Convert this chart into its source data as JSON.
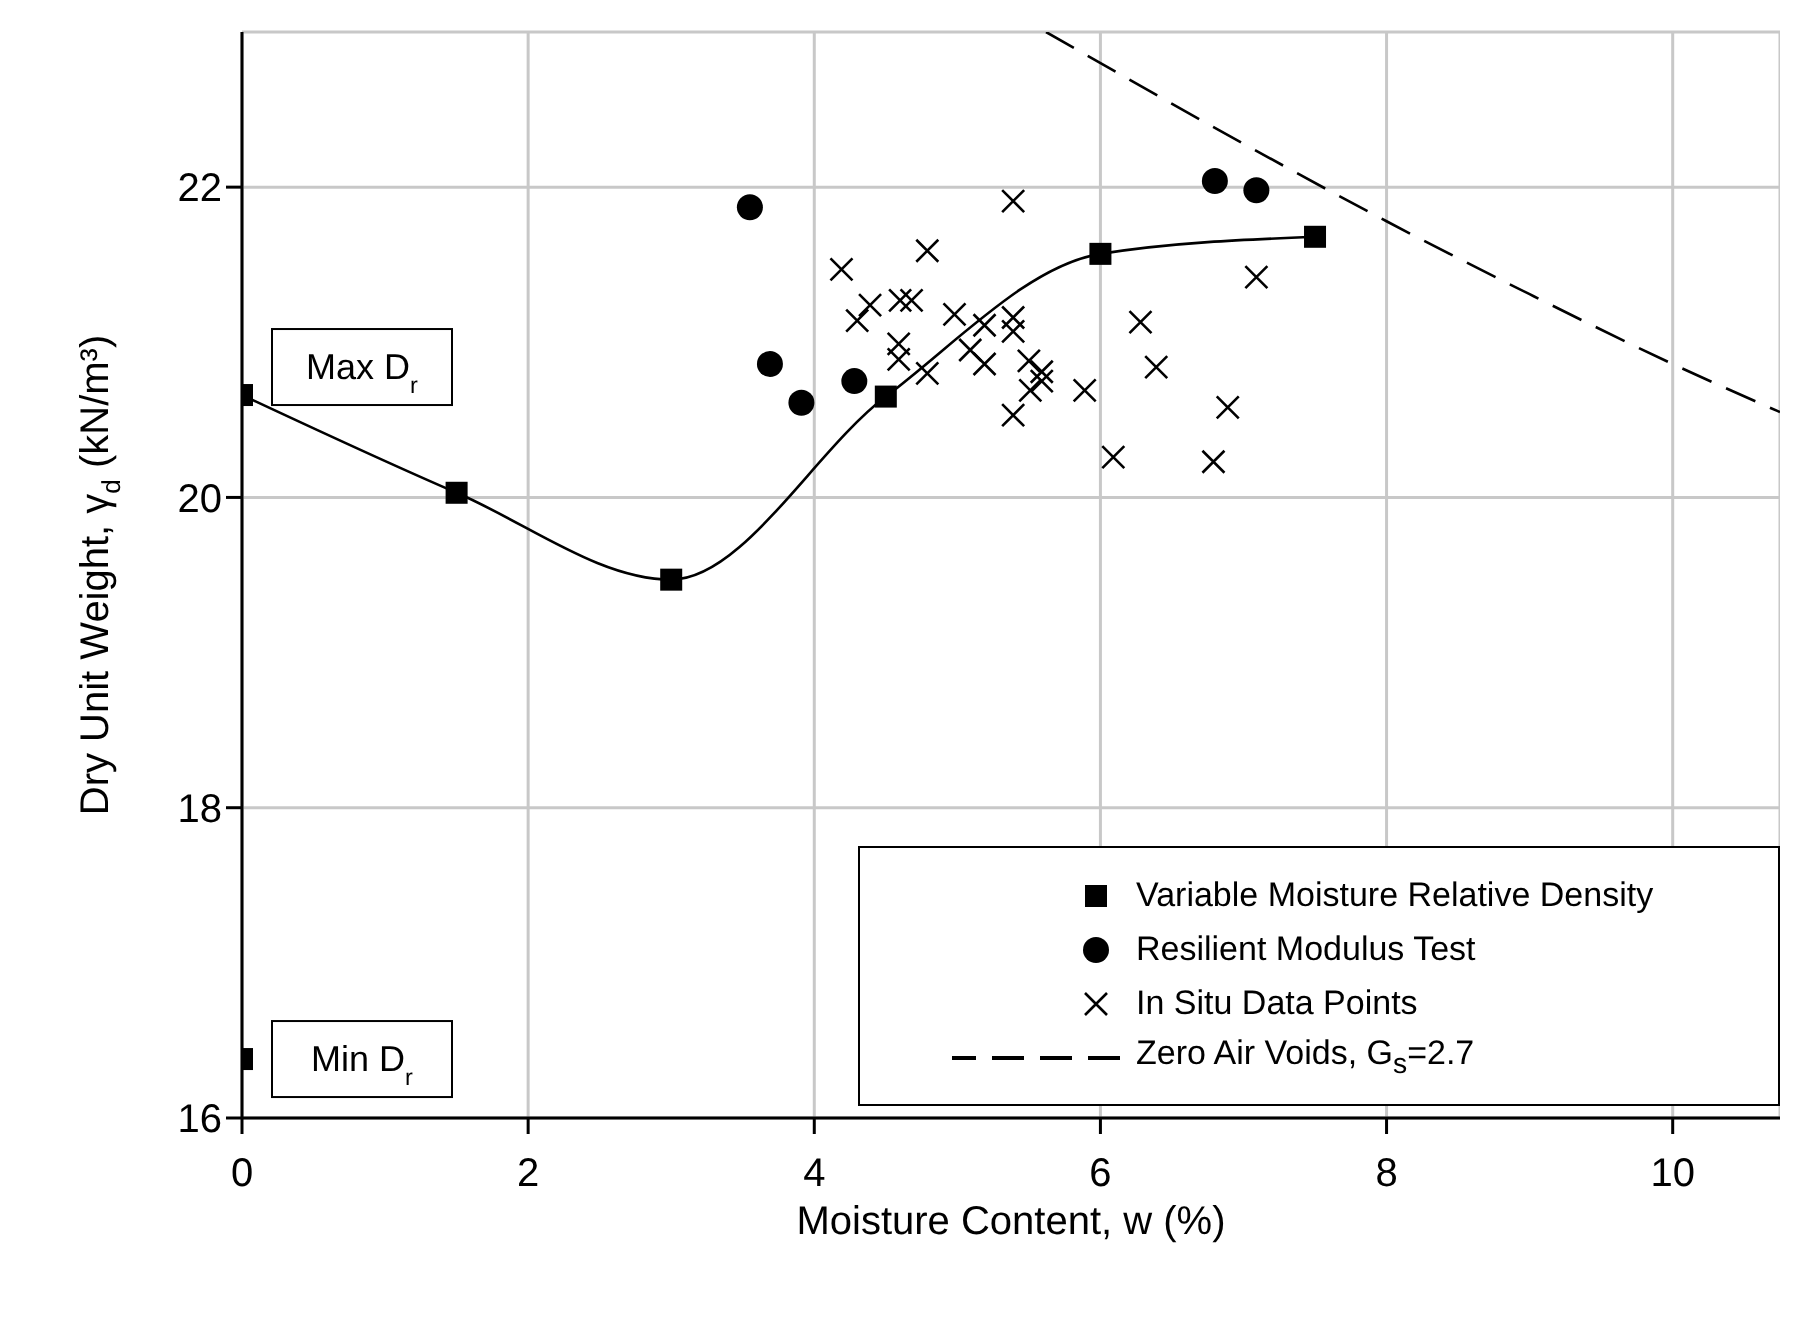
{
  "chart_data": {
    "type": "scatter",
    "xlabel": "Moisture Content, w (%)",
    "ylabel": "Dry Unit Weight, γ$_{d}$ (kN/m³)",
    "xlim": [
      0,
      10.75
    ],
    "xticks": [
      0,
      2,
      4,
      6,
      8,
      10
    ],
    "ylim": [
      16,
      23
    ],
    "yticks": [
      16,
      18,
      20,
      22
    ],
    "grid": true,
    "legend": "bottom right",
    "series": [
      {
        "name": "Variable Moisture Relative Density",
        "type": "line",
        "marker": "square",
        "line_style": "solid",
        "color": "#000000",
        "x": [
          0,
          1.5,
          3,
          4.5,
          6,
          7.5
        ],
        "values": [
          20.66,
          20.03,
          19.47,
          20.65,
          21.57,
          21.68
        ]
      },
      {
        "type": "scatter",
        "marker": "square",
        "color": "#000000",
        "x": [
          0
        ],
        "values": [
          16.38
        ]
      },
      {
        "name": "Resilient Modulus Test",
        "type": "scatter",
        "marker": "circle",
        "color": "#000000",
        "x": [
          3.55,
          3.69,
          3.91,
          4.28,
          6.8,
          7.09
        ],
        "values": [
          21.87,
          20.86,
          20.61,
          20.75,
          22.04,
          21.98
        ]
      },
      {
        "name": "In Situ Data Points",
        "type": "scatter",
        "marker": "cross",
        "color": "#000000",
        "x": [
          4.19,
          4.79,
          5.39,
          4.39,
          4.3,
          4.6,
          4.68,
          4.59,
          4.59,
          4.79,
          4.98,
          5.19,
          5.09,
          5.19,
          5.39,
          5.39,
          5.5,
          5.59,
          5.51,
          5.59,
          5.39,
          5.89,
          6.28,
          6.39,
          6.09,
          6.89,
          6.79,
          7.09
        ],
        "values": [
          21.47,
          21.59,
          21.91,
          21.24,
          21.14,
          21.27,
          21.27,
          20.99,
          20.89,
          20.8,
          21.18,
          21.11,
          20.95,
          20.86,
          21.16,
          21.07,
          20.88,
          20.81,
          20.69,
          20.75,
          20.53,
          20.69,
          21.13,
          20.84,
          20.26,
          20.58,
          20.23,
          21.42
        ]
      },
      {
        "name": "Zero Air Voids, G$_{s}$=2.7",
        "type": "line",
        "marker": "none",
        "line_style": "dashed",
        "color": "#000000",
        "x": [
          5.62,
          7,
          8,
          9,
          10,
          10.75
        ],
        "values": [
          23,
          22.28,
          21.78,
          21.31,
          20.86,
          20.55
        ]
      }
    ],
    "annotations": [
      {
        "text": "Max D$_{r}$",
        "x": 0,
        "y": 20.66
      },
      {
        "text": "Min D$_{r}$",
        "x": 0,
        "y": 16.38
      }
    ]
  }
}
